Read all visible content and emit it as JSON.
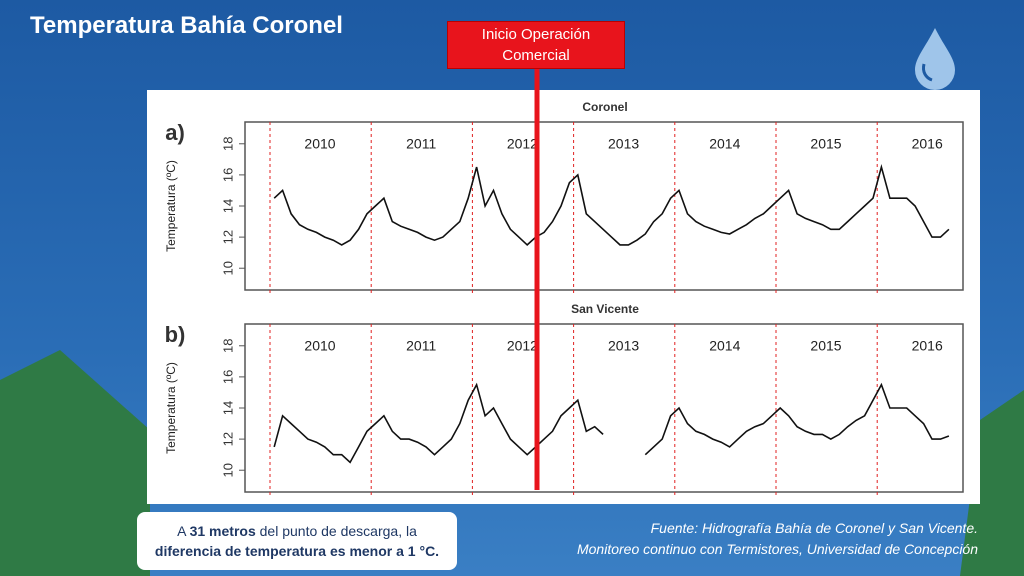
{
  "slide": {
    "title": "Temperatura Bahía Coronel",
    "marker": "Inicio Operación Comercial",
    "note": {
      "parts": [
        "A ",
        "31 metros",
        " del punto de descarga, la",
        "diferencia de temperatura es menor a 1 °C."
      ]
    },
    "source": [
      "Fuente: Hidrografía Bahía de Coronel y San Vicente.",
      "Monitoreo continuo con Termistores, Universidad de Concepción"
    ]
  },
  "chart_data": [
    {
      "type": "line",
      "panel": "a)",
      "title": "Coronel",
      "y_label": "Temperatura (ºC)",
      "year_labels": [
        "2010",
        "2011",
        "2012",
        "2013",
        "2014",
        "2015",
        "2016"
      ],
      "ylim": [
        8.6,
        19.4
      ],
      "yticks": [
        10,
        12,
        14,
        16,
        18
      ],
      "series": [
        {
          "color": "#111111",
          "values": [
            14.5,
            15,
            13.5,
            12.8,
            12.5,
            12.3,
            12,
            11.8,
            11.5,
            11.8,
            12.5,
            13.5,
            14,
            14.5,
            13,
            12.7,
            12.5,
            12.3,
            12,
            11.8,
            12,
            12.5,
            13,
            14.5,
            16.5,
            14,
            15,
            13.5,
            12.5,
            12,
            11.5,
            12,
            12.3,
            13,
            14,
            15.5,
            16,
            13.5,
            13,
            12.5,
            12,
            11.5,
            11.5,
            11.8,
            12.2,
            13,
            13.5,
            14.5,
            15,
            13.5,
            13,
            12.7,
            12.5,
            12.3,
            12.2,
            12.5,
            12.8,
            13.2,
            13.5,
            14,
            14.5,
            15,
            13.5,
            13.2,
            13,
            12.8,
            12.5,
            12.5,
            13,
            13.5,
            14,
            14.5,
            16.5,
            14.5,
            14.5,
            14.5,
            14,
            13,
            12,
            12,
            12.5
          ]
        }
      ]
    },
    {
      "type": "line",
      "panel": "b)",
      "title": "San Vicente",
      "y_label": "Temperatura (ºC)",
      "year_labels": [
        "2010",
        "2011",
        "2012",
        "2013",
        "2014",
        "2015",
        "2016"
      ],
      "ylim": [
        8.6,
        19.4
      ],
      "yticks": [
        10,
        12,
        14,
        16,
        18
      ],
      "series": [
        {
          "color": "#111111",
          "values": [
            11.5,
            13.5,
            13,
            12.5,
            12,
            11.8,
            11.5,
            11,
            11,
            10.5,
            11.5,
            12.5,
            13,
            13.5,
            12.5,
            12,
            12,
            11.8,
            11.5,
            11,
            11.5,
            12,
            13,
            14.5,
            15.5,
            13.5,
            14,
            13,
            12,
            11.5,
            11,
            11.5,
            12,
            12.5,
            13.5,
            14,
            14.5,
            12.5,
            12.8,
            12.3,
            null,
            null,
            null,
            null,
            11,
            11.5,
            12,
            13.5,
            14,
            13,
            12.5,
            12.3,
            12,
            11.8,
            11.5,
            12,
            12.5,
            12.8,
            13,
            13.5,
            14,
            13.5,
            12.8,
            12.5,
            12.3,
            12.3,
            12,
            12.3,
            12.8,
            13.2,
            13.5,
            14.5,
            15.5,
            14,
            14,
            14,
            13.5,
            13,
            12,
            12,
            12.2
          ]
        }
      ]
    }
  ]
}
